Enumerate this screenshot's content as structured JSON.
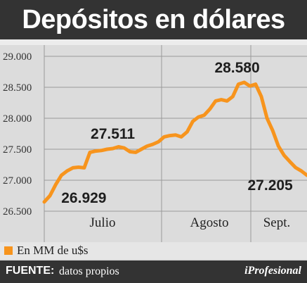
{
  "header": {
    "title": "Depósitos en dólares"
  },
  "legend": {
    "label": "En MM de u$s",
    "color": "#f7941d"
  },
  "footer": {
    "source_label": "FUENTE:",
    "source_text": "datos propios",
    "brand": "iProfesional"
  },
  "chart_data": {
    "type": "line",
    "title": "Depósitos en dólares",
    "ylim": [
      26500,
      29000
    ],
    "y_ticks": [
      "26.500",
      "27.000",
      "27.500",
      "28.000",
      "28.500",
      "29.000"
    ],
    "y_tick_values": [
      26500,
      27000,
      27500,
      28000,
      28500,
      29000
    ],
    "month_labels": [
      "Julio",
      "Agosto",
      "Sept."
    ],
    "grid": true,
    "line_color": "#f7941d",
    "series": [
      {
        "name": "En MM de u$s",
        "x": [
          0,
          1,
          2,
          3,
          4,
          5,
          6,
          7,
          8,
          9,
          10,
          11,
          12,
          13,
          14,
          15,
          16,
          17,
          18,
          19,
          20,
          21,
          22,
          23,
          24,
          25,
          26,
          27,
          28,
          29,
          30,
          31,
          32,
          33,
          34,
          35,
          36,
          37,
          38,
          39,
          40,
          41,
          42,
          43,
          44,
          45,
          46
        ],
        "values": [
          26650,
          26750,
          26929,
          27080,
          27150,
          27200,
          27210,
          27200,
          27450,
          27470,
          27480,
          27500,
          27511,
          27540,
          27520,
          27460,
          27450,
          27500,
          27550,
          27580,
          27620,
          27700,
          27720,
          27730,
          27700,
          27780,
          27950,
          28020,
          28050,
          28150,
          28280,
          28300,
          28280,
          28350,
          28550,
          28580,
          28520,
          28550,
          28350,
          28000,
          27800,
          27550,
          27400,
          27300,
          27205,
          27150,
          27080
        ]
      }
    ],
    "annotations": [
      {
        "text": "26.929",
        "x": 2,
        "y": 26929
      },
      {
        "text": "27.511",
        "x": 12,
        "y": 27511
      },
      {
        "text": "28.580",
        "x": 35,
        "y": 28580
      },
      {
        "text": "27.205",
        "x": 44,
        "y": 27205
      }
    ]
  }
}
